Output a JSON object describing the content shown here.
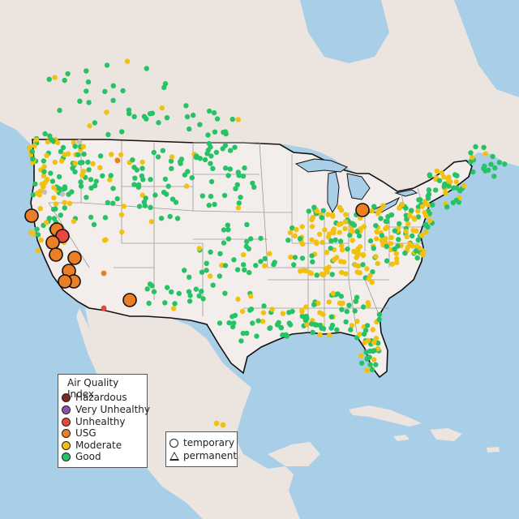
{
  "legend": {
    "title": "Air Quality Index",
    "categories": [
      {
        "label": "Hazardous",
        "color": "#7e2a1e"
      },
      {
        "label": "Very Unhealthy",
        "color": "#8f4fb0"
      },
      {
        "label": "Unhealthy",
        "color": "#e8473f"
      },
      {
        "label": "USG",
        "color": "#ec7e26"
      },
      {
        "label": "Moderate",
        "color": "#f2c10f"
      },
      {
        "label": "Good",
        "color": "#26c266"
      }
    ],
    "shapes": {
      "temporary": "temporary",
      "permanent": "permanent"
    }
  },
  "colors": {
    "ocean": "#a9cfe8",
    "land": "#ece4df",
    "us_land": "#f3eeeb",
    "border": "#111111",
    "state_line": "#9a9a9a",
    "no_data": "#c0c0c0"
  },
  "large_sites": [
    {
      "category": "USG"
    },
    {
      "category": "USG"
    },
    {
      "category": "Unhealthy"
    },
    {
      "category": "USG"
    },
    {
      "category": "USG"
    },
    {
      "category": "USG"
    },
    {
      "category": "USG"
    },
    {
      "category": "USG"
    },
    {
      "category": "USG"
    },
    {
      "category": "USG"
    },
    {
      "category": "USG"
    }
  ]
}
